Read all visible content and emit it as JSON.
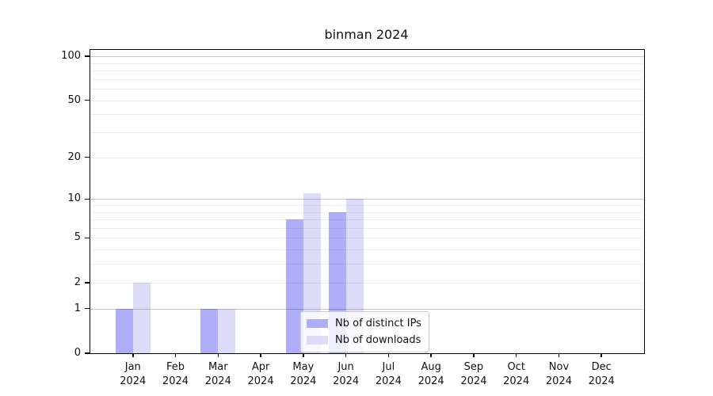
{
  "chart_data": {
    "type": "bar",
    "title": "binman 2024",
    "x": [
      {
        "month": "Jan",
        "year": "2024"
      },
      {
        "month": "Feb",
        "year": "2024"
      },
      {
        "month": "Mar",
        "year": "2024"
      },
      {
        "month": "Apr",
        "year": "2024"
      },
      {
        "month": "May",
        "year": "2024"
      },
      {
        "month": "Jun",
        "year": "2024"
      },
      {
        "month": "Jul",
        "year": "2024"
      },
      {
        "month": "Aug",
        "year": "2024"
      },
      {
        "month": "Sep",
        "year": "2024"
      },
      {
        "month": "Oct",
        "year": "2024"
      },
      {
        "month": "Nov",
        "year": "2024"
      },
      {
        "month": "Dec",
        "year": "2024"
      }
    ],
    "series": [
      {
        "name": "Nb of distinct IPs",
        "color": "#aeaef8",
        "values": [
          1,
          0,
          1,
          0,
          7,
          8,
          0,
          0,
          0,
          0,
          0,
          0
        ]
      },
      {
        "name": "Nb of downloads",
        "color": "#dcdcf8",
        "values": [
          2,
          0,
          1,
          0,
          11,
          10,
          0,
          0,
          0,
          0,
          0,
          0
        ]
      }
    ],
    "yscale": "log1p",
    "ylim": [
      0,
      110
    ],
    "y_tick_values": [
      0,
      1,
      2,
      5,
      10,
      20,
      50,
      100
    ],
    "y_tick_labels": [
      "0",
      "1",
      "2",
      "5",
      "10",
      "20",
      "50",
      "100"
    ],
    "y_minor_gridline_values": [
      3,
      4,
      6,
      7,
      8,
      9,
      30,
      40,
      60,
      70,
      80,
      90
    ],
    "y_decade_gridline_values": [
      1,
      10,
      100
    ],
    "grid": true,
    "legend_position": "inside lower center"
  },
  "colors": {
    "background": "#ffffff",
    "axis": "#000000",
    "text": "#111111",
    "grid_decade": "rgba(0,0,0,0.22)",
    "grid_light": "rgba(0,0,0,0.07)",
    "legend_border": "#cccccc",
    "legend_background": "rgba(255,255,255,0.8)"
  }
}
